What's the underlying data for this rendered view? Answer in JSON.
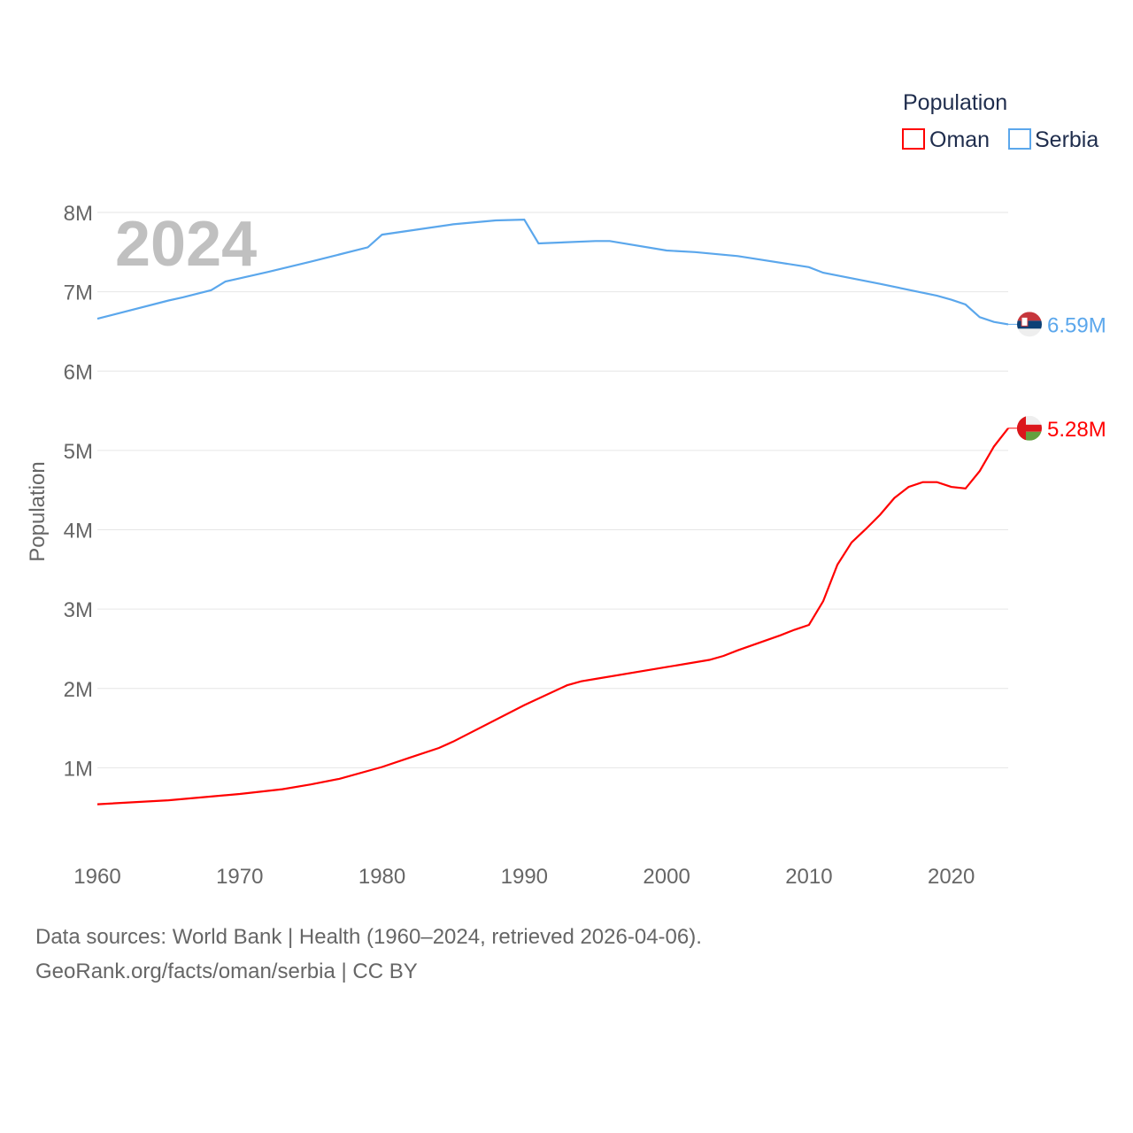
{
  "chart_data": {
    "type": "line",
    "ylabel": "Population",
    "xlabel": "",
    "year_label": "2024",
    "legend": {
      "title": "Population",
      "placement": "top-right"
    },
    "xlim": [
      1960,
      2024
    ],
    "ylim": [
      0,
      8000000
    ],
    "x_ticks": [
      "1960",
      "1970",
      "1980",
      "1990",
      "2000",
      "2010",
      "2020"
    ],
    "x_tick_values": [
      1960,
      1970,
      1980,
      1990,
      2000,
      2010,
      2020
    ],
    "y_ticks": [
      "1M",
      "2M",
      "3M",
      "4M",
      "5M",
      "6M",
      "7M",
      "8M"
    ],
    "y_tick_values": [
      1000000,
      2000000,
      3000000,
      4000000,
      5000000,
      6000000,
      7000000,
      8000000
    ],
    "grid": true,
    "series": [
      {
        "name": "Oman",
        "color": "#ff0000",
        "end_label": "5.28M",
        "flag": "oman-flag",
        "x": [
          1960,
          1965,
          1970,
          1973,
          1975,
          1977,
          1980,
          1982,
          1984,
          1985,
          1990,
          1993,
          1994,
          1995,
          2000,
          2003,
          2004,
          2005,
          2008,
          2009,
          2010,
          2011,
          2012,
          2013,
          2014,
          2015,
          2016,
          2017,
          2018,
          2019,
          2020,
          2021,
          2022,
          2023,
          2024
        ],
        "values": [
          0.54,
          0.59,
          0.67,
          0.73,
          0.79,
          0.86,
          1.01,
          1.13,
          1.25,
          1.33,
          1.79,
          2.04,
          2.09,
          2.12,
          2.27,
          2.36,
          2.41,
          2.48,
          2.67,
          2.74,
          2.8,
          3.1,
          3.56,
          3.84,
          4.01,
          4.19,
          4.4,
          4.54,
          4.6,
          4.6,
          4.54,
          4.52,
          4.74,
          5.05,
          5.28
        ]
      },
      {
        "name": "Serbia",
        "color": "#5ba7ec",
        "end_label": "6.59M",
        "flag": "serbia-flag",
        "x": [
          1960,
          1965,
          1966,
          1968,
          1969,
          1970,
          1972,
          1975,
          1977,
          1979,
          1980,
          1985,
          1988,
          1990,
          1991,
          1995,
          1996,
          2000,
          2002,
          2005,
          2010,
          2011,
          2015,
          2019,
          2020,
          2021,
          2022,
          2023,
          2024
        ],
        "values": [
          6.66,
          6.89,
          6.93,
          7.02,
          7.13,
          7.17,
          7.25,
          7.38,
          7.47,
          7.56,
          7.72,
          7.85,
          7.9,
          7.91,
          7.61,
          7.64,
          7.64,
          7.52,
          7.5,
          7.45,
          7.31,
          7.24,
          7.1,
          6.95,
          6.9,
          6.84,
          6.68,
          6.62,
          6.59
        ]
      }
    ]
  },
  "footer": {
    "sources": "Data sources: World Bank | Health (1960–2024, retrieved 2026-04-06).",
    "credit": "GeoRank.org/facts/oman/serbia | CC BY"
  }
}
